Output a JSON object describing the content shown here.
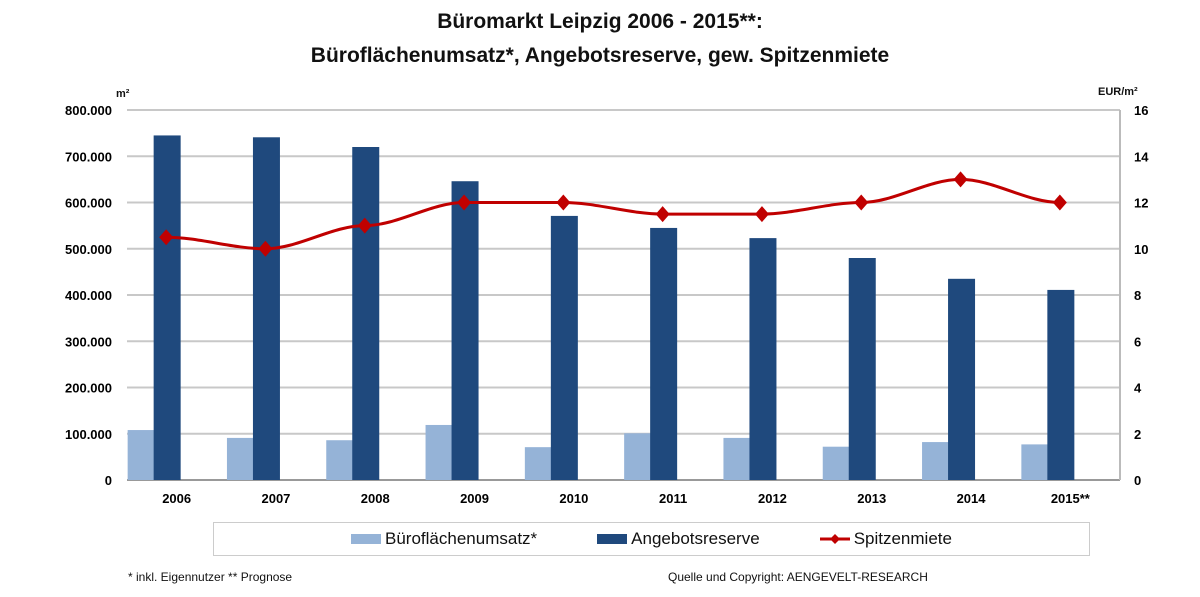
{
  "chart_data": {
    "type": "bar",
    "title": "Büromarkt Leipzig 2006 - 2015**:",
    "subtitle": "Büroflächenumsatz*, Angebotsreserve, gew. Spitzenmiete",
    "categories": [
      "2006",
      "2007",
      "2008",
      "2009",
      "2010",
      "2011",
      "2012",
      "2013",
      "2014",
      "2015**"
    ],
    "ylabel": "m²",
    "y2label": "EUR/m²",
    "ylim": [
      0,
      800000
    ],
    "y2lim": [
      0,
      16
    ],
    "yticks": [
      "0",
      "100.000",
      "200.000",
      "300.000",
      "400.000",
      "500.000",
      "600.000",
      "700.000",
      "800.000"
    ],
    "y2ticks": [
      "0",
      "2",
      "4",
      "6",
      "8",
      "10",
      "12",
      "14",
      "16"
    ],
    "grid": true,
    "legend_position": "bottom",
    "series": [
      {
        "name": "Büroflächenumsatz*",
        "type": "bar",
        "axis": "left",
        "color": "#95b3d7",
        "values": [
          108000,
          91000,
          86000,
          119000,
          71000,
          101000,
          91000,
          72000,
          82000,
          77000
        ]
      },
      {
        "name": "Angebotsreserve",
        "type": "bar",
        "axis": "left",
        "color": "#1f497d",
        "values": [
          745000,
          741000,
          720000,
          646000,
          571000,
          545000,
          523000,
          480000,
          435000,
          411000
        ]
      },
      {
        "name": "Spitzenmiete",
        "type": "line",
        "axis": "right",
        "color": "#c00000",
        "values": [
          10.5,
          10,
          11,
          12,
          12,
          11.5,
          11.5,
          12,
          13,
          12
        ]
      }
    ]
  },
  "footnotes": {
    "left": "* inkl. Eigennutzer   ** Prognose",
    "right": "Quelle und Copyright: AENGEVELT-RESEARCH"
  }
}
